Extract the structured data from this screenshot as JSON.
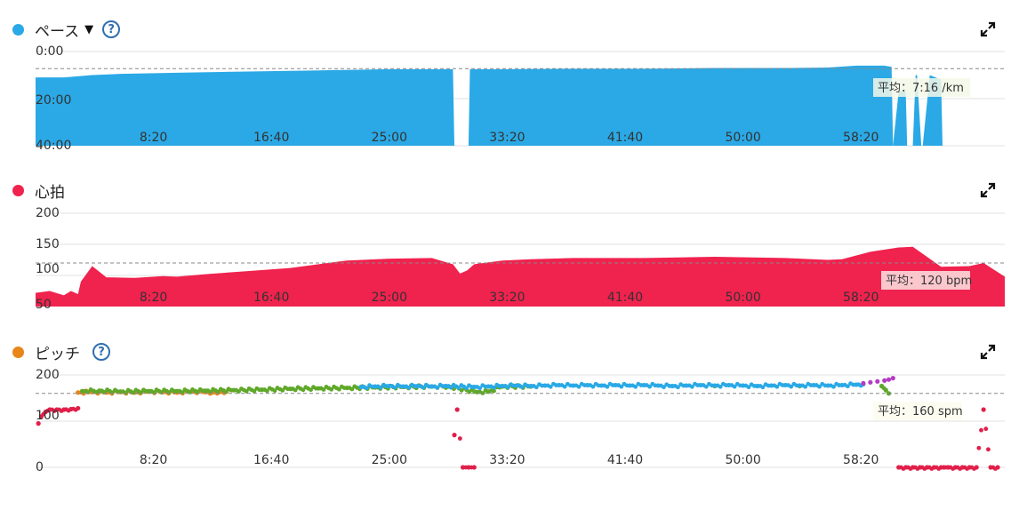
{
  "panels": {
    "pace": {
      "title": "ペース",
      "color": "#2aa9e6",
      "average_label": "平均：7:16 /km",
      "has_dropdown": true,
      "has_help": true,
      "icons": [
        "dropdown-caret-icon",
        "help-icon",
        "expand-icon"
      ]
    },
    "hr": {
      "title": "心拍",
      "color": "#f0224e",
      "average_label": "平均：120 bpm",
      "icons": [
        "expand-icon"
      ]
    },
    "cadence": {
      "title": "ピッチ",
      "color": "#e8861a",
      "average_label": "平均：160 spm",
      "has_help": true,
      "icons": [
        "help-icon",
        "expand-icon"
      ]
    }
  },
  "chart_data": [
    {
      "id": "pace",
      "type": "area",
      "title": "ペース",
      "ytick_labels": [
        "0:00",
        "20:00",
        "40:00"
      ],
      "xtick_labels": [
        "8:20",
        "16:40",
        "25:00",
        "33:20",
        "41:40",
        "50:00",
        "58:20"
      ],
      "ylim_minutes": [
        0,
        40
      ],
      "y_inverted": true,
      "average_minutes_per_km": 7.27,
      "xlim_minutes": [
        0,
        68.5
      ],
      "grid": true,
      "series": [
        {
          "x": [
            0,
            2,
            4,
            6,
            10,
            15,
            20,
            25,
            28,
            29.5,
            29.6
          ],
          "y": [
            11,
            11,
            10,
            9.5,
            9,
            8.5,
            8,
            7.5,
            7.5,
            7.5,
            40
          ]
        },
        {
          "x": [
            30.6,
            30.7,
            33,
            38,
            43,
            48,
            53,
            56,
            58,
            60,
            60.5,
            60.6
          ],
          "y": [
            40,
            7.5,
            7.5,
            7.3,
            7.3,
            7,
            7,
            6.8,
            6,
            6,
            6.5,
            40
          ]
        },
        {
          "x": [
            60.6,
            61,
            61.5,
            61.6,
            62,
            62.2,
            62.3,
            62.6,
            62.7,
            63.2,
            64,
            64.1
          ],
          "y": [
            40,
            17,
            17,
            40,
            40,
            10,
            10,
            40,
            40,
            10,
            12,
            40
          ]
        }
      ]
    },
    {
      "id": "hr",
      "type": "area",
      "title": "心拍",
      "ytick_labels": [
        "200",
        "150",
        "100",
        "50"
      ],
      "xtick_labels": [
        "8:20",
        "16:40",
        "25:00",
        "33:20",
        "41:40",
        "50:00",
        "58:20"
      ],
      "ylim": [
        50,
        200
      ],
      "average": 120,
      "xlim_minutes": [
        0,
        68.5
      ],
      "grid": true,
      "series": [
        {
          "x": [
            0,
            1,
            2,
            2.5,
            3,
            3.2,
            4,
            4.5,
            5,
            7,
            9,
            10,
            12,
            15,
            18,
            20,
            22,
            25,
            28,
            29.5,
            30,
            30.5,
            31,
            33,
            35,
            38,
            43,
            48,
            53,
            56,
            57,
            59,
            61,
            62,
            63,
            64,
            66,
            67,
            68.5
          ],
          "y": [
            72,
            75,
            68,
            75,
            70,
            90,
            115,
            106,
            97,
            96,
            99,
            98,
            102,
            107,
            112,
            118,
            124,
            127,
            128,
            118,
            103,
            108,
            118,
            124,
            126,
            128,
            128,
            130,
            128,
            125,
            126,
            138,
            145,
            146,
            130,
            114,
            115,
            120,
            98
          ]
        }
      ]
    },
    {
      "id": "cadence",
      "type": "scatter",
      "title": "ピッチ",
      "ytick_labels": [
        "200",
        "100",
        "0"
      ],
      "xtick_labels": [
        "8:20",
        "16:40",
        "25:00",
        "33:20",
        "41:40",
        "50:00",
        "58:20"
      ],
      "ylim": [
        0,
        200
      ],
      "average": 160,
      "xlim_minutes": [
        0,
        68.5
      ],
      "grid": true,
      "series": [
        {
          "name": "",
          "color": "#e0204a",
          "x": [
            0.2,
            0.4,
            0.7,
            1,
            1.5,
            2,
            2.5,
            3,
            29.6,
            29.8,
            30.2,
            30.6,
            31,
            61,
            61.5,
            62,
            62.5,
            63,
            63.5,
            64,
            64.2,
            64.5,
            65,
            65.5,
            66,
            66.5,
            67,
            67.5,
            68
          ],
          "y": [
            95,
            110,
            120,
            125,
            125,
            125,
            126,
            128,
            70,
            125,
            0,
            0,
            0,
            0,
            0,
            0,
            0,
            0,
            0,
            0,
            0,
            0,
            0,
            0,
            0,
            0,
            125,
            0,
            0
          ]
        },
        {
          "name": "",
          "color": "#e8861a",
          "x": [
            3,
            4,
            5,
            6,
            7,
            8,
            9,
            10,
            11,
            12,
            12.5,
            13,
            13.5
          ],
          "y": [
            162,
            163,
            162,
            163,
            162,
            164,
            163,
            162,
            164,
            163,
            162,
            163,
            164
          ]
        },
        {
          "name": "",
          "color": "#5fa829",
          "x": [
            3.3,
            4.5,
            6,
            8,
            10,
            12,
            14,
            16,
            18,
            20,
            22,
            24,
            26,
            28,
            29.2,
            31.2,
            32,
            33,
            35,
            48,
            54,
            59.8,
            60.1,
            60.3
          ],
          "y": [
            165,
            166,
            164,
            165,
            165,
            166,
            167,
            168,
            170,
            171,
            172,
            173,
            174,
            175,
            175,
            163,
            164,
            175,
            175,
            176,
            176,
            176,
            167,
            160
          ]
        },
        {
          "name": "",
          "color": "#2aa9e6",
          "x": [
            23,
            24,
            25,
            26,
            27,
            28,
            29,
            31,
            32,
            33,
            34,
            35,
            36,
            37,
            38,
            39,
            40,
            41,
            42,
            43,
            44,
            45,
            46,
            47,
            48,
            49,
            50,
            51,
            52,
            53,
            54,
            55,
            56,
            57,
            58,
            58.5
          ],
          "y": [
            174,
            175,
            176,
            175,
            176,
            175,
            176,
            174,
            175,
            176,
            177,
            176,
            177,
            178,
            177,
            178,
            177,
            178,
            177,
            178,
            177,
            176,
            177,
            178,
            177,
            178,
            177,
            176,
            177,
            178,
            177,
            178,
            177,
            178,
            179,
            180
          ]
        },
        {
          "name": "",
          "color": "#b43cc4",
          "x": [
            58.5,
            59,
            59.5,
            60,
            60.3,
            60.6
          ],
          "y": [
            182,
            184,
            186,
            188,
            190,
            193
          ]
        }
      ]
    }
  ]
}
